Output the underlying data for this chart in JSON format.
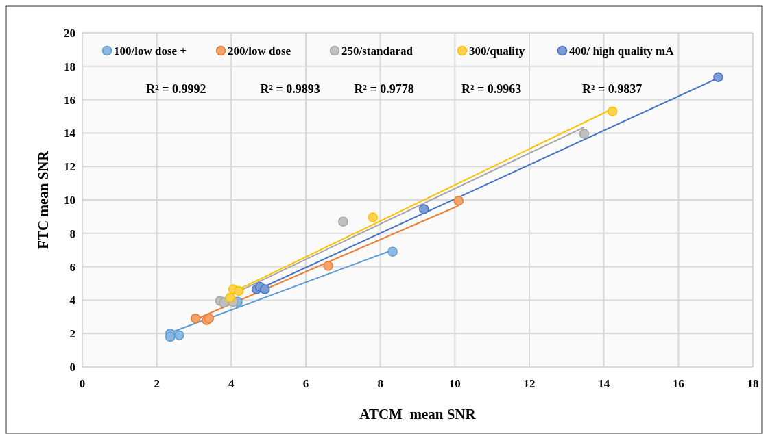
{
  "chart_data": {
    "type": "scatter",
    "xlabel": "ATCM  mean SNR",
    "ylabel": "FTC mean SNR",
    "xlim": [
      0,
      18
    ],
    "xticks": [
      0,
      2,
      4,
      6,
      8,
      10,
      12,
      14,
      16,
      18
    ],
    "ylim": [
      0,
      20
    ],
    "yticks": [
      0,
      2,
      4,
      6,
      8,
      10,
      12,
      14,
      16,
      18,
      20
    ],
    "grid": true,
    "legend": "top",
    "marker": "circle",
    "annotations": [
      "R² = 0.9992",
      "R² = 0.9893",
      "R² = 0.9778",
      "R² = 0.9963",
      "R² = 0.9837"
    ],
    "series": [
      {
        "name": "100/low dose +",
        "color": "#5b9bd5",
        "x": [
          2.36,
          2.36,
          2.6,
          4.17,
          8.33
        ],
        "values": [
          2.0,
          1.8,
          1.9,
          3.9,
          6.9
        ]
      },
      {
        "name": "200/low dose",
        "color": "#ed7d31",
        "x": [
          3.04,
          3.34,
          3.4,
          6.6,
          10.1
        ],
        "values": [
          2.9,
          2.8,
          2.9,
          6.05,
          9.95
        ]
      },
      {
        "name": "250/standarad",
        "color": "#a5a5a5",
        "x": [
          3.7,
          3.8,
          4.05,
          7.0,
          13.47
        ],
        "values": [
          3.95,
          3.85,
          3.9,
          8.7,
          13.95
        ]
      },
      {
        "name": "300/quality",
        "color": "#ffc000",
        "x": [
          4.05,
          4.2,
          3.97,
          7.8,
          14.23
        ],
        "values": [
          4.65,
          4.55,
          4.15,
          8.95,
          15.3
        ]
      },
      {
        "name": "400/ high quality mA",
        "color": "#4472c4",
        "x": [
          4.68,
          4.77,
          4.9,
          9.17,
          17.07
        ],
        "values": [
          4.65,
          4.8,
          4.65,
          9.45,
          17.35
        ]
      },
      {
        "type": "line",
        "marker": "none",
        "color": "#5b9bd5",
        "x": [
          2.36,
          8.33
        ],
        "values": [
          2.05,
          7.0
        ]
      },
      {
        "type": "line",
        "marker": "none",
        "color": "#ed7d31",
        "x": [
          3.04,
          10.1
        ],
        "values": [
          2.85,
          9.65
        ]
      },
      {
        "type": "line",
        "marker": "none",
        "color": "#a5a5a5",
        "x": [
          3.7,
          13.47
        ],
        "values": [
          4.0,
          14.35
        ]
      },
      {
        "type": "line",
        "marker": "none",
        "color": "#ffc000",
        "x": [
          3.97,
          14.23
        ],
        "values": [
          4.4,
          15.45
        ]
      },
      {
        "type": "line",
        "marker": "none",
        "color": "#4472c4",
        "x": [
          4.68,
          17.07
        ],
        "values": [
          4.6,
          17.3
        ]
      }
    ]
  }
}
